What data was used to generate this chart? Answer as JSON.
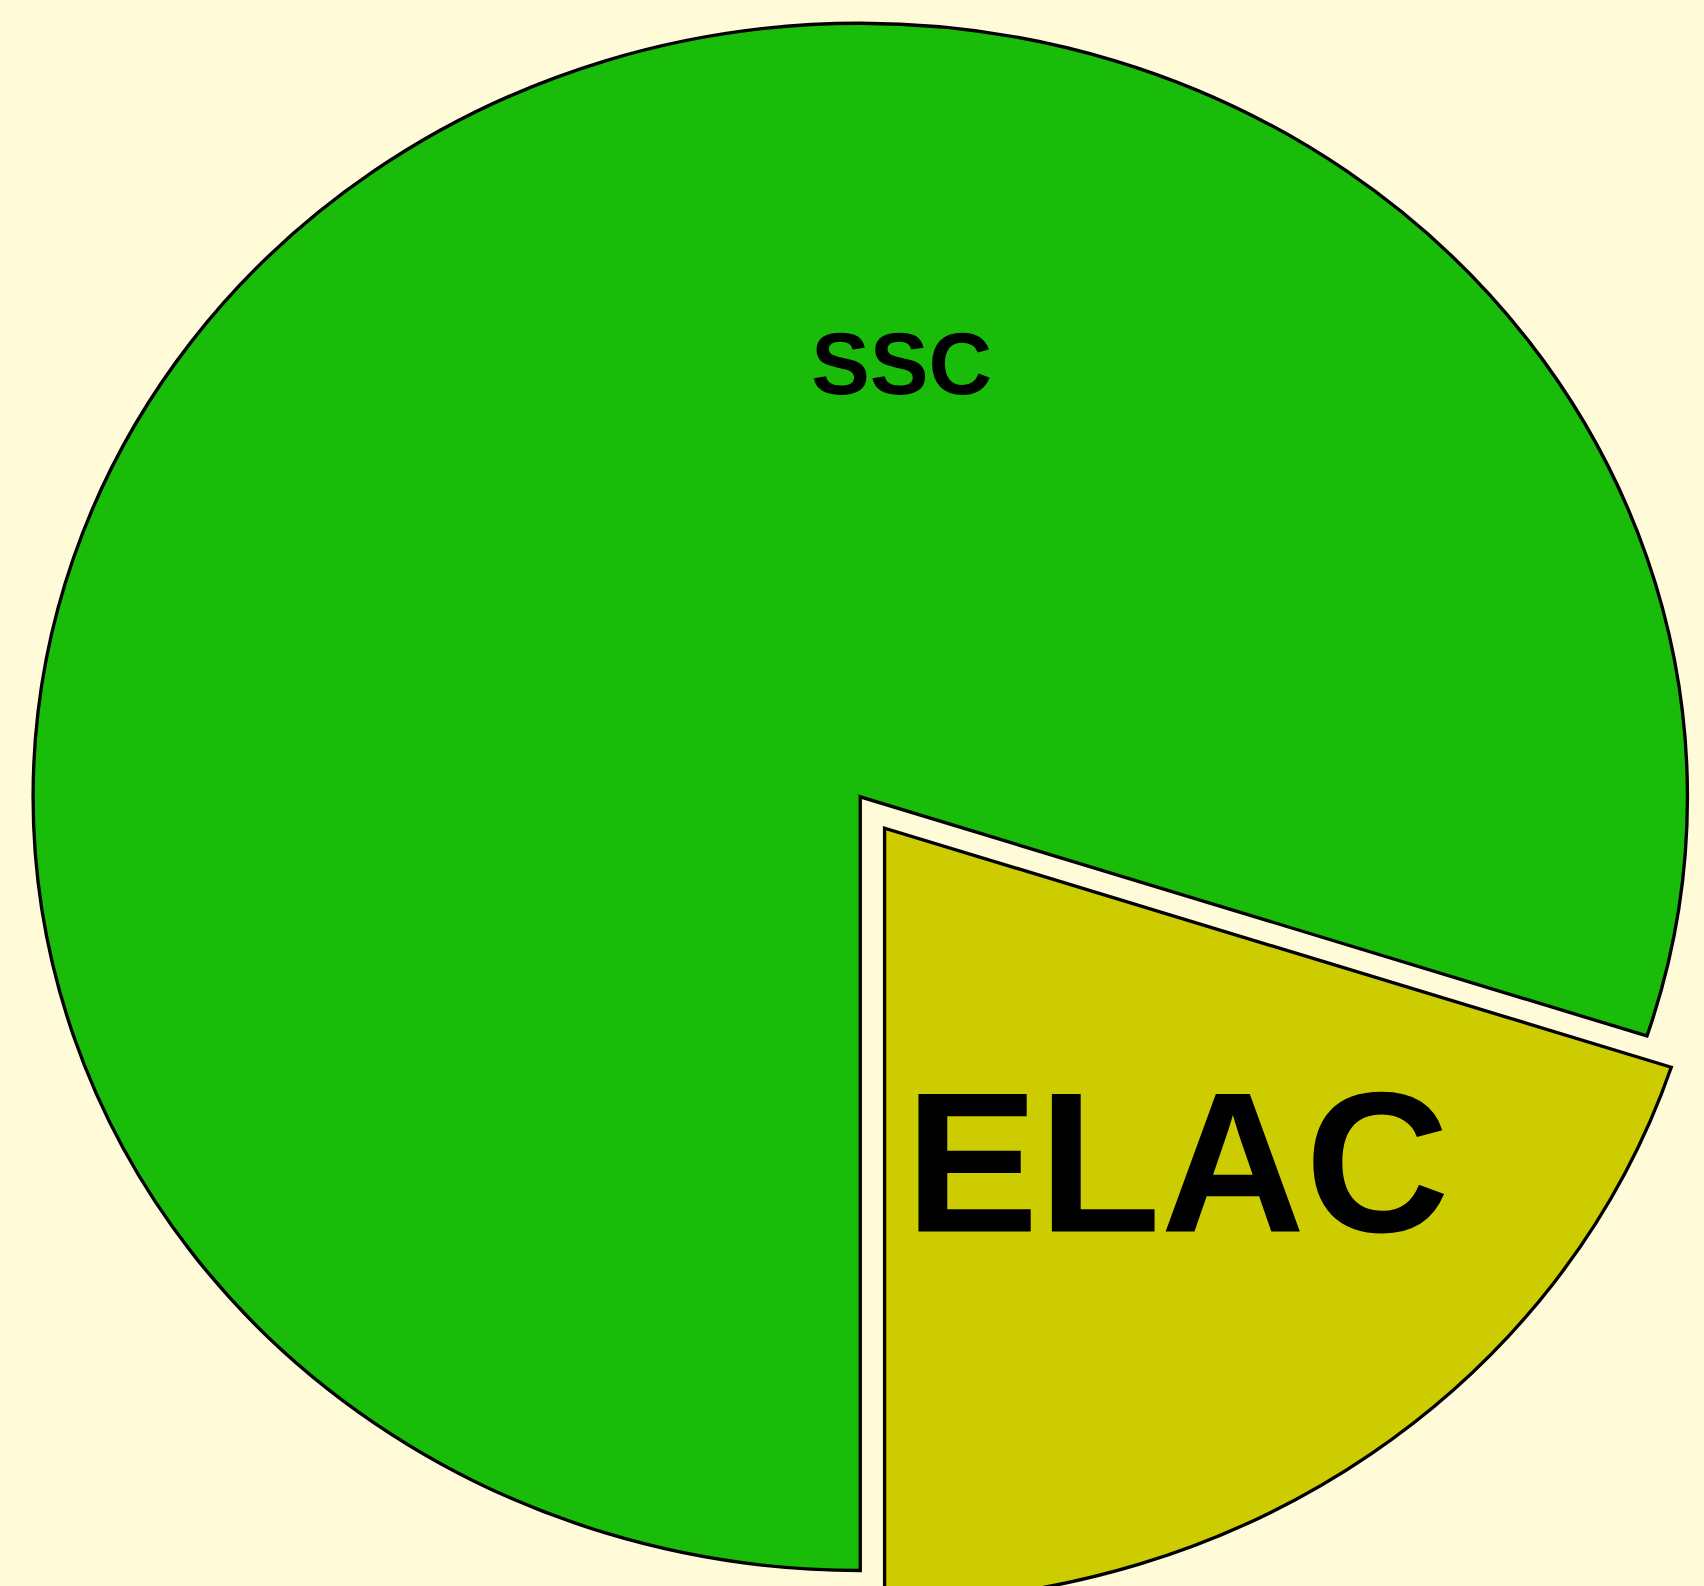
{
  "chart_data": {
    "type": "pie",
    "categories": [
      "SSC",
      "ELAC"
    ],
    "values": [
      80,
      20
    ],
    "colors": [
      "#1abc0a",
      "#cdcc00"
    ]
  }
}
